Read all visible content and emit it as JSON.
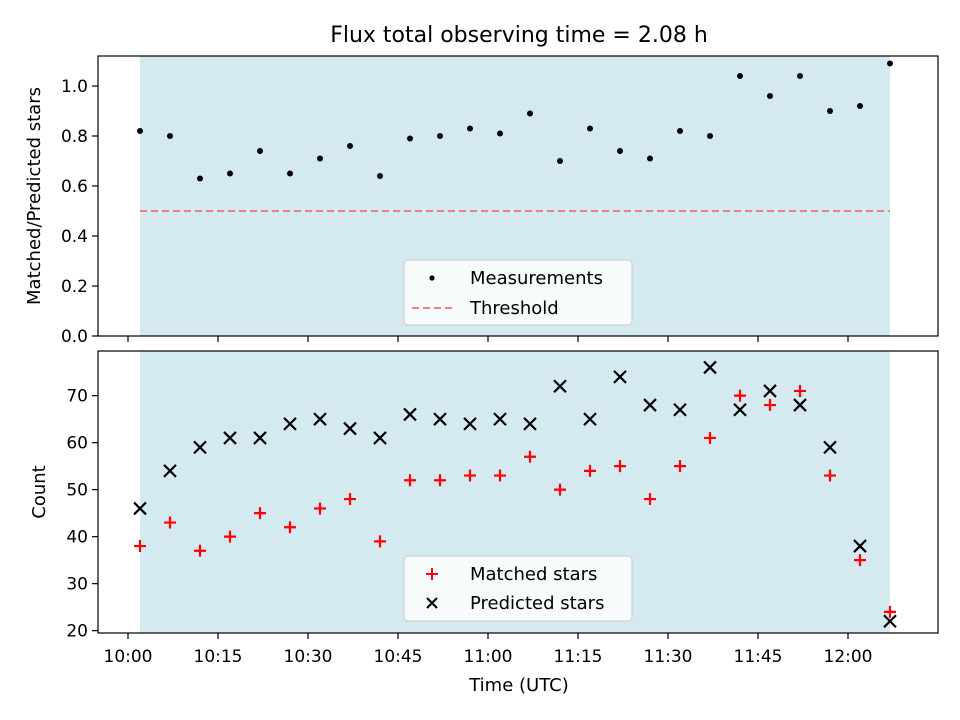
{
  "figure": {
    "title": "Flux total observing time = 2.08 h",
    "colors": {
      "shade": "#d4e9f0",
      "threshold": "#f08080",
      "matched": "#ff0000",
      "predicted": "#000000",
      "measurement": "#000000"
    }
  },
  "chart_data": [
    {
      "type": "scatter",
      "ylabel": "Matched/Predicted stars",
      "xlabel": "",
      "xlim": [
        "09:55",
        "12:15"
      ],
      "ylim": [
        0,
        1.12
      ],
      "yticks": [
        0.0,
        0.2,
        0.4,
        0.6,
        0.8,
        1.0
      ],
      "ytick_labels": [
        "0.0",
        "0.2",
        "0.4",
        "0.6",
        "0.8",
        "1.0"
      ],
      "shaded_interval": [
        "10:02",
        "12:07"
      ],
      "threshold": 0.5,
      "series": [
        {
          "name": "Measurements",
          "marker": "dot",
          "x": [
            "10:02",
            "10:07",
            "10:12",
            "10:17",
            "10:22",
            "10:27",
            "10:32",
            "10:37",
            "10:42",
            "10:47",
            "10:52",
            "10:57",
            "11:02",
            "11:07",
            "11:12",
            "11:17",
            "11:22",
            "11:27",
            "11:32",
            "11:37",
            "11:42",
            "11:47",
            "11:52",
            "11:57",
            "12:02",
            "12:07"
          ],
          "values": [
            0.82,
            0.8,
            0.63,
            0.65,
            0.74,
            0.65,
            0.71,
            0.76,
            0.64,
            0.79,
            0.8,
            0.83,
            0.81,
            0.89,
            0.7,
            0.83,
            0.74,
            0.71,
            0.82,
            0.8,
            1.04,
            0.96,
            1.04,
            0.9,
            0.92,
            1.09
          ]
        },
        {
          "name": "Threshold",
          "style": "dashed",
          "value": 0.5
        }
      ],
      "legend": [
        "Measurements",
        "Threshold"
      ],
      "legend_position": "lower-center"
    },
    {
      "type": "scatter",
      "ylabel": "Count",
      "xlabel": "Time (UTC)",
      "xlim": [
        "09:55",
        "12:15"
      ],
      "ylim": [
        19.5,
        79.5
      ],
      "yticks": [
        20,
        30,
        40,
        50,
        60,
        70
      ],
      "ytick_labels": [
        "20",
        "30",
        "40",
        "50",
        "60",
        "70"
      ],
      "xticks": [
        "10:00",
        "10:15",
        "10:30",
        "10:45",
        "11:00",
        "11:15",
        "11:30",
        "11:45",
        "12:00"
      ],
      "shaded_interval": [
        "10:02",
        "12:07"
      ],
      "series": [
        {
          "name": "Matched stars",
          "marker": "plus",
          "x": [
            "10:02",
            "10:07",
            "10:12",
            "10:17",
            "10:22",
            "10:27",
            "10:32",
            "10:37",
            "10:42",
            "10:47",
            "10:52",
            "10:57",
            "11:02",
            "11:07",
            "11:12",
            "11:17",
            "11:22",
            "11:27",
            "11:32",
            "11:37",
            "11:42",
            "11:47",
            "11:52",
            "11:57",
            "12:02",
            "12:07"
          ],
          "values": [
            38,
            43,
            37,
            40,
            45,
            42,
            46,
            48,
            39,
            52,
            52,
            53,
            53,
            57,
            50,
            54,
            55,
            48,
            55,
            61,
            70,
            68,
            71,
            53,
            35,
            24
          ]
        },
        {
          "name": "Predicted stars",
          "marker": "x",
          "x": [
            "10:02",
            "10:07",
            "10:12",
            "10:17",
            "10:22",
            "10:27",
            "10:32",
            "10:37",
            "10:42",
            "10:47",
            "10:52",
            "10:57",
            "11:02",
            "11:07",
            "11:12",
            "11:17",
            "11:22",
            "11:27",
            "11:32",
            "11:37",
            "11:42",
            "11:47",
            "11:52",
            "11:57",
            "12:02",
            "12:07"
          ],
          "values": [
            46,
            54,
            59,
            61,
            61,
            64,
            65,
            63,
            61,
            66,
            65,
            64,
            65,
            64,
            72,
            65,
            74,
            68,
            67,
            76,
            67,
            71,
            68,
            59,
            38,
            22
          ]
        }
      ],
      "legend": [
        "Matched stars",
        "Predicted stars"
      ],
      "legend_position": "lower-center"
    }
  ]
}
